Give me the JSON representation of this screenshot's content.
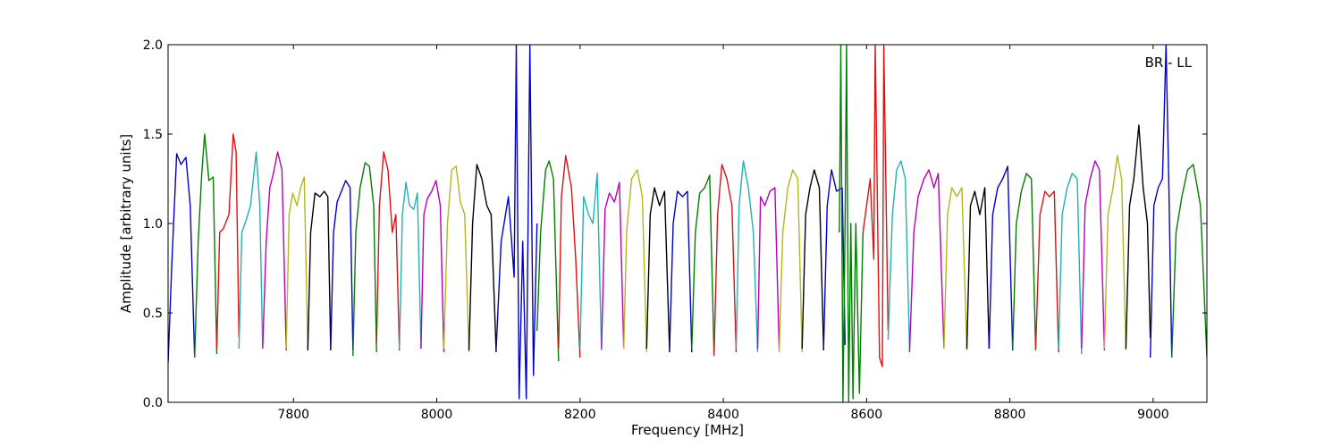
{
  "chart_data": {
    "type": "line",
    "xlabel": "Frequency [MHz]",
    "ylabel": "Amplitude [arbitrary units]",
    "annotation": "BR - LL",
    "xlim": [
      7625,
      9075
    ],
    "ylim": [
      0.0,
      2.0
    ],
    "xticks": [
      7800,
      8000,
      8200,
      8400,
      8600,
      8800,
      9000
    ],
    "xtick_labels": [
      "7800",
      "8000",
      "8200",
      "8400",
      "8600",
      "8800",
      "9000"
    ],
    "yticks": [
      0.0,
      0.5,
      1.0,
      1.5,
      2.0
    ],
    "ytick_labels": [
      "0.0",
      "0.5",
      "1.0",
      "1.5",
      "2.0"
    ],
    "grid": false,
    "legend": "none",
    "color_cycle": [
      "#0000cc",
      "#007f00",
      "#dd1111",
      "#20b2b2",
      "#b800b8",
      "#b5b522",
      "#000000"
    ],
    "series": [
      {
        "x": [
          7625,
          7630,
          7637,
          7643,
          7650,
          7656,
          7662
        ],
        "y": [
          0.22,
          0.75,
          1.39,
          1.33,
          1.37,
          1.1,
          0.25
        ]
      },
      {
        "x": [
          7662,
          7667,
          7672,
          7676,
          7682,
          7688,
          7693
        ],
        "y": [
          0.25,
          0.9,
          1.28,
          1.5,
          1.24,
          1.26,
          0.27
        ]
      },
      {
        "x": [
          7693,
          7697,
          7702,
          7710,
          7716,
          7720,
          7724
        ],
        "y": [
          0.3,
          0.95,
          0.97,
          1.05,
          1.5,
          1.4,
          0.36
        ]
      },
      {
        "x": [
          7724,
          7728,
          7734,
          7740,
          7748,
          7753,
          7757
        ],
        "y": [
          0.3,
          0.95,
          1.02,
          1.1,
          1.4,
          1.1,
          0.3
        ]
      },
      {
        "x": [
          7757,
          7762,
          7767,
          7772,
          7778,
          7784,
          7790
        ],
        "y": [
          0.3,
          0.9,
          1.2,
          1.28,
          1.4,
          1.3,
          0.29
        ]
      },
      {
        "x": [
          7790,
          7794,
          7799,
          7805,
          7810,
          7815,
          7820
        ],
        "y": [
          0.3,
          1.05,
          1.17,
          1.1,
          1.2,
          1.26,
          0.29
        ]
      },
      {
        "x": [
          7820,
          7824,
          7830,
          7837,
          7843,
          7848,
          7852
        ],
        "y": [
          0.29,
          0.95,
          1.17,
          1.15,
          1.18,
          1.15,
          0.29
        ]
      },
      {
        "x": [
          7852,
          7856,
          7861,
          7867,
          7873,
          7879,
          7883
        ],
        "y": [
          0.3,
          0.95,
          1.12,
          1.18,
          1.24,
          1.2,
          0.29
        ]
      },
      {
        "x": [
          7883,
          7887,
          7893,
          7900,
          7906,
          7912,
          7916
        ],
        "y": [
          0.26,
          0.95,
          1.2,
          1.34,
          1.32,
          1.1,
          0.28
        ]
      },
      {
        "x": [
          7916,
          7920,
          7926,
          7932,
          7938,
          7943,
          7948
        ],
        "y": [
          0.33,
          1.1,
          1.4,
          1.3,
          0.95,
          1.05,
          0.29
        ]
      },
      {
        "x": [
          7948,
          7952,
          7957,
          7962,
          7968,
          7973,
          7978
        ],
        "y": [
          0.3,
          1.05,
          1.23,
          1.1,
          1.08,
          1.17,
          0.3
        ]
      },
      {
        "x": [
          7978,
          7982,
          7987,
          7993,
          7999,
          8005,
          8010
        ],
        "y": [
          0.3,
          1.05,
          1.14,
          1.18,
          1.24,
          1.1,
          0.28
        ]
      },
      {
        "x": [
          8010,
          8015,
          8021,
          8027,
          8033,
          8039,
          8045
        ],
        "y": [
          0.3,
          1.0,
          1.3,
          1.32,
          1.12,
          1.05,
          0.28
        ]
      },
      {
        "x": [
          8045,
          8050,
          8056,
          8063,
          8070,
          8076,
          8083
        ],
        "y": [
          0.29,
          1.0,
          1.33,
          1.25,
          1.1,
          1.05,
          0.28
        ]
      },
      {
        "x": [
          8083,
          8090,
          8100,
          8108,
          8111,
          8115,
          8120,
          8125,
          8130,
          8135,
          8140
        ],
        "y": [
          0.3,
          0.9,
          1.15,
          0.7,
          2.0,
          0.02,
          0.9,
          0.02,
          2.0,
          0.15,
          1.0
        ]
      },
      {
        "x": [
          8140,
          8145,
          8152,
          8157,
          8163,
          8170
        ],
        "y": [
          0.4,
          0.95,
          1.3,
          1.35,
          1.25,
          0.23
        ]
      },
      {
        "x": [
          8170,
          8174,
          8180,
          8188,
          8194,
          8200
        ],
        "y": [
          0.3,
          1.15,
          1.38,
          1.2,
          0.8,
          0.25
        ]
      },
      {
        "x": [
          8200,
          8205,
          8212,
          8218,
          8224,
          8230
        ],
        "y": [
          0.3,
          1.15,
          1.05,
          1.0,
          1.28,
          0.29
        ]
      },
      {
        "x": [
          8230,
          8235,
          8241,
          8248,
          8255,
          8261
        ],
        "y": [
          0.3,
          1.08,
          1.17,
          1.12,
          1.23,
          0.3
        ]
      },
      {
        "x": [
          8261,
          8265,
          8272,
          8280,
          8287,
          8293
        ],
        "y": [
          0.3,
          0.95,
          1.25,
          1.3,
          1.15,
          0.28
        ]
      },
      {
        "x": [
          8293,
          8298,
          8304,
          8311,
          8318,
          8325
        ],
        "y": [
          0.3,
          1.05,
          1.2,
          1.1,
          1.18,
          0.28
        ]
      },
      {
        "x": [
          8325,
          8330,
          8336,
          8343,
          8350,
          8356
        ],
        "y": [
          0.3,
          1.0,
          1.18,
          1.15,
          1.18,
          0.28
        ]
      },
      {
        "x": [
          8356,
          8361,
          8367,
          8374,
          8381,
          8387
        ],
        "y": [
          0.3,
          0.95,
          1.17,
          1.2,
          1.27,
          0.27
        ]
      },
      {
        "x": [
          8387,
          8392,
          8398,
          8405,
          8412,
          8418
        ],
        "y": [
          0.26,
          1.05,
          1.33,
          1.25,
          1.1,
          0.28
        ]
      },
      {
        "x": [
          8418,
          8422,
          8428,
          8435,
          8442,
          8448
        ],
        "y": [
          0.3,
          1.1,
          1.35,
          1.2,
          0.95,
          0.28
        ]
      },
      {
        "x": [
          8448,
          8452,
          8458,
          8465,
          8472,
          8478
        ],
        "y": [
          0.3,
          1.15,
          1.1,
          1.18,
          1.2,
          0.29
        ]
      },
      {
        "x": [
          8478,
          8483,
          8490,
          8497,
          8504,
          8510
        ],
        "y": [
          0.28,
          0.95,
          1.2,
          1.3,
          1.25,
          0.28
        ]
      },
      {
        "x": [
          8510,
          8515,
          8521,
          8527,
          8534,
          8540
        ],
        "y": [
          0.3,
          1.05,
          1.2,
          1.3,
          1.2,
          0.29
        ]
      },
      {
        "x": [
          8540,
          8545,
          8551,
          8558,
          8566,
          8570
        ],
        "y": [
          0.31,
          1.1,
          1.3,
          1.18,
          1.2,
          0.32
        ]
      },
      {
        "x": [
          8562,
          8564,
          8567,
          8570,
          8572,
          8575,
          8578,
          8581,
          8585,
          8590,
          8595
        ],
        "y": [
          0.95,
          2.0,
          0.0,
          1.0,
          2.0,
          0.0,
          1.0,
          0.02,
          1.0,
          0.05,
          0.95
        ]
      },
      {
        "x": [
          8595,
          8600,
          8605,
          8610,
          8612,
          8618,
          8622,
          8624,
          8630
        ],
        "y": [
          0.95,
          1.1,
          1.25,
          0.8,
          2.0,
          0.25,
          0.2,
          2.0,
          0.4
        ]
      },
      {
        "x": [
          8630,
          8636,
          8642,
          8648,
          8654,
          8660
        ],
        "y": [
          0.35,
          1.05,
          1.3,
          1.35,
          1.25,
          0.3
        ]
      },
      {
        "x": [
          8660,
          8666,
          8672,
          8680,
          8687,
          8694,
          8700,
          8708
        ],
        "y": [
          0.28,
          0.95,
          1.15,
          1.25,
          1.3,
          1.2,
          1.28,
          0.3
        ]
      },
      {
        "x": [
          8708,
          8713,
          8719,
          8726,
          8733,
          8740
        ],
        "y": [
          0.3,
          1.05,
          1.2,
          1.15,
          1.2,
          0.29
        ]
      },
      {
        "x": [
          8740,
          8745,
          8751,
          8758,
          8765,
          8771
        ],
        "y": [
          0.3,
          1.1,
          1.18,
          1.05,
          1.2,
          0.3
        ]
      },
      {
        "x": [
          8771,
          8776,
          8783,
          8790,
          8797,
          8804
        ],
        "y": [
          0.3,
          1.05,
          1.2,
          1.25,
          1.32,
          0.29
        ]
      },
      {
        "x": [
          8804,
          8809,
          8816,
          8823,
          8830,
          8836
        ],
        "y": [
          0.3,
          1.0,
          1.18,
          1.28,
          1.25,
          0.29
        ]
      },
      {
        "x": [
          8836,
          8842,
          8849,
          8855,
          8862,
          8868
        ],
        "y": [
          0.3,
          1.05,
          1.18,
          1.15,
          1.18,
          0.28
        ]
      },
      {
        "x": [
          8868,
          8873,
          8880,
          8887,
          8894,
          8900
        ],
        "y": [
          0.3,
          1.05,
          1.2,
          1.28,
          1.25,
          0.27
        ]
      },
      {
        "x": [
          8900,
          8905,
          8912,
          8919,
          8925,
          8932
        ],
        "y": [
          0.3,
          1.1,
          1.25,
          1.35,
          1.3,
          0.29
        ]
      },
      {
        "x": [
          8932,
          8937,
          8944,
          8950,
          8956,
          8962
        ],
        "y": [
          0.3,
          1.05,
          1.2,
          1.38,
          1.25,
          0.29
        ]
      },
      {
        "x": [
          8962,
          8967,
          8973,
          8980,
          8986,
          8992,
          8996
        ],
        "y": [
          0.3,
          1.1,
          1.25,
          1.55,
          1.2,
          1.0,
          0.36
        ]
      },
      {
        "x": [
          8996,
          9001,
          9007,
          9013,
          9018,
          9022,
          9026
        ],
        "y": [
          0.25,
          1.1,
          1.2,
          1.25,
          2.0,
          1.2,
          0.25
        ]
      },
      {
        "x": [
          9026,
          9032,
          9040,
          9048,
          9056,
          9066,
          9075
        ],
        "y": [
          0.25,
          0.95,
          1.15,
          1.3,
          1.33,
          1.1,
          0.25
        ]
      }
    ]
  }
}
